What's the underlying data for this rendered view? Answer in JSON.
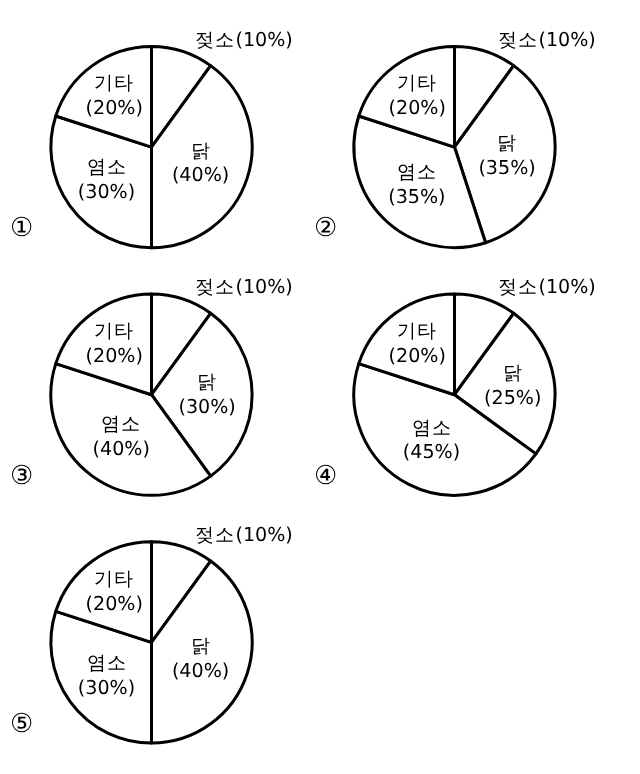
{
  "chart_data": [
    {
      "type": "pie",
      "categories": [
        "젖소",
        "닭",
        "염소",
        "기타"
      ],
      "values": [
        10,
        40,
        30,
        20
      ],
      "value_labels": [
        "(10%)",
        "(40%)",
        "(30%)",
        "(20%)"
      ],
      "colors": [
        "#ffffff",
        "#ffffff",
        "#ffffff",
        "#ffffff"
      ],
      "annotations": [
        "①"
      ]
    },
    {
      "type": "pie",
      "categories": [
        "젖소",
        "닭",
        "염소",
        "기타"
      ],
      "values": [
        10,
        35,
        35,
        20
      ],
      "value_labels": [
        "(10%)",
        "(35%)",
        "(35%)",
        "(20%)"
      ],
      "colors": [
        "#ffffff",
        "#ffffff",
        "#ffffff",
        "#ffffff"
      ],
      "annotations": [
        "②"
      ]
    },
    {
      "type": "pie",
      "categories": [
        "젖소",
        "닭",
        "염소",
        "기타"
      ],
      "values": [
        10,
        30,
        40,
        20
      ],
      "value_labels": [
        "(10%)",
        "(30%)",
        "(40%)",
        "(20%)"
      ],
      "colors": [
        "#ffffff",
        "#ffffff",
        "#ffffff",
        "#ffffff"
      ],
      "annotations": [
        "③"
      ]
    },
    {
      "type": "pie",
      "categories": [
        "젖소",
        "닭",
        "염소",
        "기타"
      ],
      "values": [
        10,
        25,
        45,
        20
      ],
      "value_labels": [
        "(10%)",
        "(25%)",
        "(45%)",
        "(20%)"
      ],
      "colors": [
        "#ffffff",
        "#ffffff",
        "#ffffff",
        "#ffffff"
      ],
      "annotations": [
        "④"
      ]
    },
    {
      "type": "pie",
      "categories": [
        "젖소",
        "닭",
        "염소",
        "기타"
      ],
      "values": [
        10,
        40,
        30,
        20
      ],
      "value_labels": [
        "(10%)",
        "(40%)",
        "(30%)",
        "(20%)"
      ],
      "colors": [
        "#ffffff",
        "#ffffff",
        "#ffffff",
        "#ffffff"
      ],
      "annotations": [
        "⑤"
      ]
    }
  ]
}
